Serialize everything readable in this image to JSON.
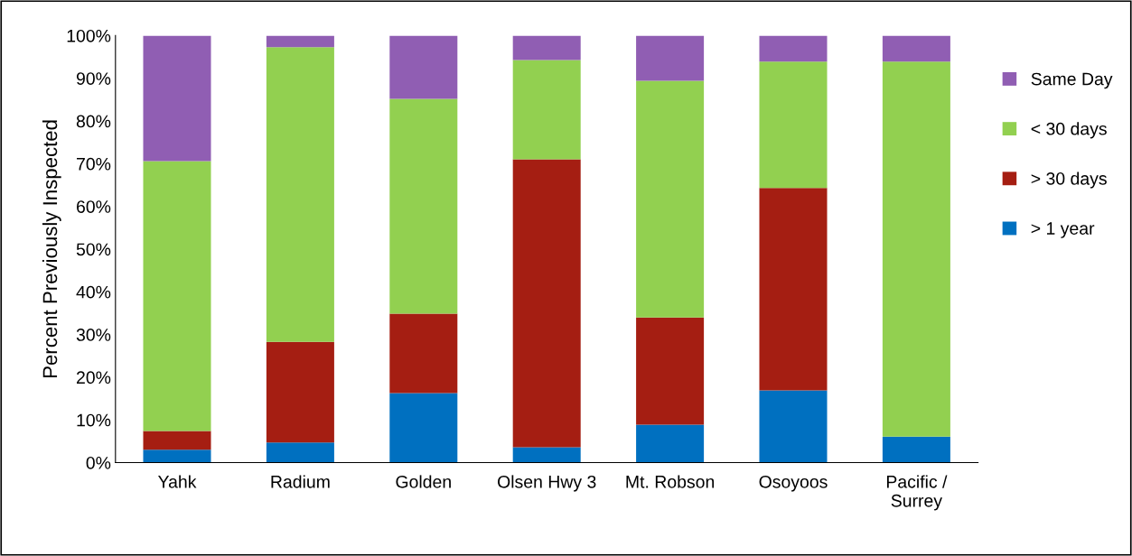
{
  "chart_data": {
    "type": "bar",
    "stacked": true,
    "ylabel": "Percent Previously Inspected",
    "categories": [
      "Yahk",
      "Radium",
      "Golden",
      "Olsen Hwy 3",
      "Mt. Robson",
      "Osoyoos",
      "Pacific /\nSurrey"
    ],
    "series": [
      {
        "name": "> 1 year",
        "color": "#0070c0",
        "values": [
          3.0,
          4.7,
          16.3,
          3.6,
          8.9,
          16.9,
          6.1
        ]
      },
      {
        "name": "> 30 days",
        "color": "#a51e12",
        "values": [
          4.4,
          23.6,
          18.6,
          67.4,
          25.1,
          47.4,
          0
        ]
      },
      {
        "name": "< 30 days",
        "color": "#92d050",
        "values": [
          63.2,
          69.0,
          50.3,
          23.3,
          55.4,
          29.6,
          87.8
        ]
      },
      {
        "name": "Same Day",
        "color": "#905eb3",
        "values": [
          29.4,
          2.7,
          14.8,
          5.7,
          10.6,
          6.1,
          6.1
        ]
      }
    ],
    "ylim": [
      0,
      100
    ],
    "yticks": [
      {
        "value": 0,
        "label": "0%"
      },
      {
        "value": 10,
        "label": "10%"
      },
      {
        "value": 20,
        "label": "20%"
      },
      {
        "value": 30,
        "label": "30%"
      },
      {
        "value": 40,
        "label": "40%"
      },
      {
        "value": 50,
        "label": "50%"
      },
      {
        "value": 60,
        "label": "60%"
      },
      {
        "value": 70,
        "label": "70%"
      },
      {
        "value": 80,
        "label": "80%"
      },
      {
        "value": 90,
        "label": "90%"
      },
      {
        "value": 100,
        "label": "100%"
      }
    ],
    "grid": false,
    "legend": "right"
  }
}
